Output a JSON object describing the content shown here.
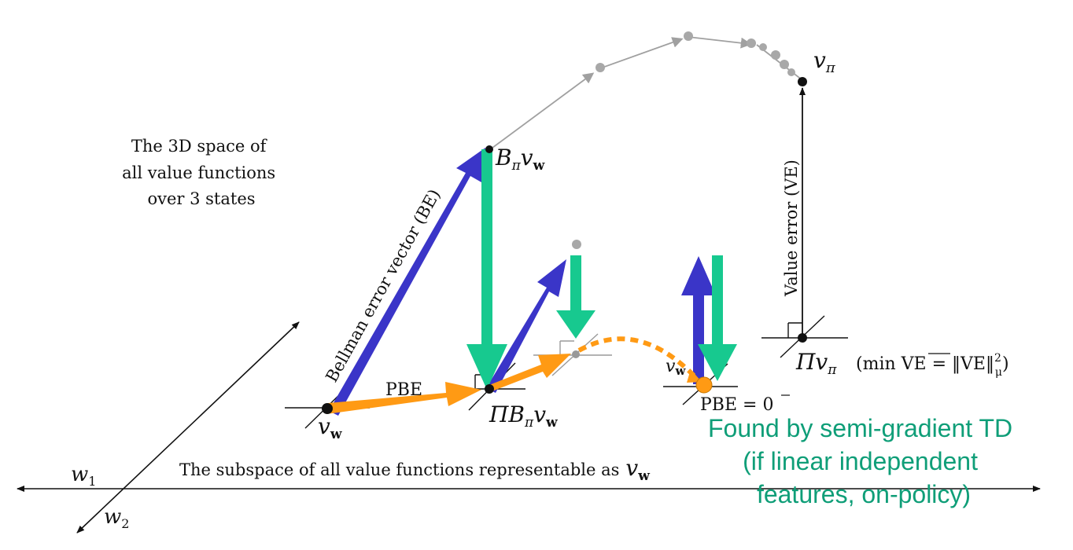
{
  "desc_3d": [
    "The 3D space of",
    "all value functions",
    "over 3 states"
  ],
  "subspace": {
    "text": "The subspace of all value functions representable as",
    "sym": "v",
    "sub": "w"
  },
  "axis": {
    "w1": "w",
    "w1_sub": "1",
    "w2": "w",
    "w2_sub": "2"
  },
  "labels": {
    "v_pi": "v",
    "v_pi_sub": "π",
    "v_w": "v",
    "v_w_sub": "w",
    "B_pi_v_w": "B",
    "B_pi_v_w_sub1": "π",
    "B_pi_v_w_v": "v",
    "B_pi_v_w_sub2": "w",
    "proj_B": "ΠB",
    "proj_B_sub1": "π",
    "proj_B_v": "v",
    "proj_B_sub2": "w",
    "proj_v_pi": "Πv",
    "proj_v_pi_sub": "π",
    "min_ve": "(min VE = ‖VE‖",
    "min_ve_sup": "2",
    "min_ve_sub": "μ",
    "min_ve_close": ")",
    "pbe_left": "PBE",
    "pbe_zero": "PBE = 0",
    "bellman_error": "Bellman error vector (BE)",
    "value_error": "Value error (VE)",
    "vw_hidden": "v",
    "vw_hidden_sub": "w"
  },
  "note": {
    "color": "#0f9e78",
    "lines": [
      "Found by semi-gradient TD",
      "(if linear independent",
      "features, on-policy)"
    ]
  },
  "colors": {
    "blue": "#3a35c8",
    "green": "#17c98f",
    "orange": "#ff9a14",
    "gray": "#a0a0a0"
  }
}
